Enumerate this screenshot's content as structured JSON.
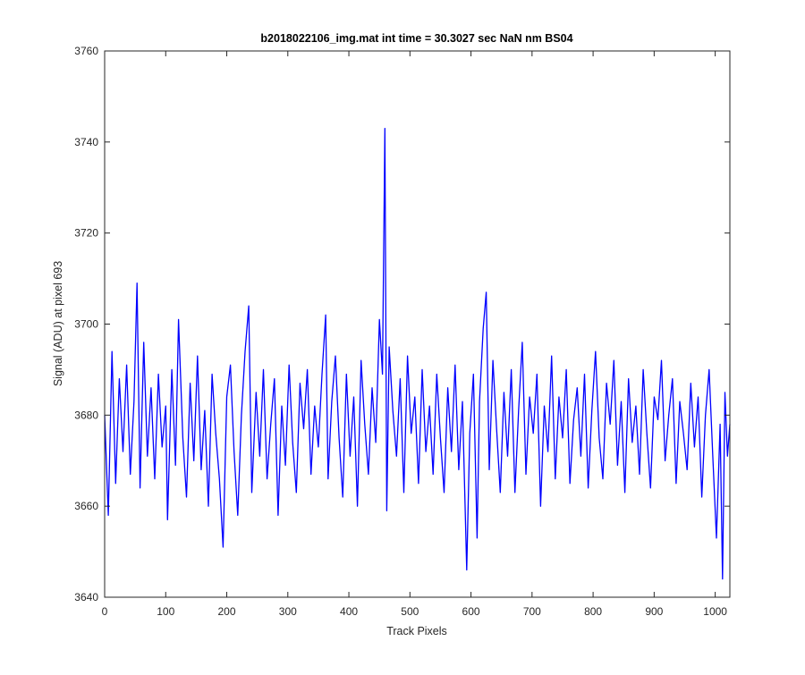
{
  "chart_data": {
    "type": "line",
    "title": "b2018022106_img.mat int time = 30.3027 sec  NaN nm BS04",
    "xlabel": "Track Pixels",
    "ylabel": "Signal (ADU) at pixel 693",
    "xlim": [
      0,
      1024
    ],
    "ylim": [
      3640,
      3760
    ],
    "xticks": [
      0,
      100,
      200,
      300,
      400,
      500,
      600,
      700,
      800,
      900,
      1000
    ],
    "yticks": [
      3640,
      3660,
      3680,
      3700,
      3720,
      3740,
      3760
    ],
    "grid": false,
    "line_color": "#0000ff",
    "series": [
      {
        "x": [
          0,
          6,
          12,
          18,
          24,
          30,
          36,
          42,
          48,
          53,
          58,
          64,
          70,
          76,
          82,
          88,
          94,
          100,
          103,
          110,
          116,
          121,
          128,
          134,
          140,
          146,
          152,
          158,
          164,
          170,
          176,
          182,
          188,
          194,
          200,
          206,
          212,
          218,
          224,
          230,
          236,
          241,
          248,
          254,
          260,
          266,
          272,
          278,
          284,
          290,
          296,
          302,
          308,
          314,
          320,
          326,
          332,
          338,
          344,
          350,
          356,
          362,
          366,
          372,
          378,
          384,
          390,
          396,
          402,
          408,
          414,
          420,
          426,
          432,
          438,
          444,
          450,
          455,
          459,
          462,
          466,
          472,
          478,
          484,
          490,
          496,
          502,
          508,
          514,
          520,
          526,
          532,
          538,
          544,
          550,
          556,
          562,
          568,
          574,
          580,
          586,
          593,
          598,
          604,
          610,
          614,
          620,
          625,
          630,
          636,
          642,
          648,
          654,
          660,
          666,
          672,
          678,
          684,
          690,
          696,
          702,
          708,
          714,
          720,
          726,
          732,
          738,
          744,
          750,
          756,
          762,
          768,
          774,
          780,
          786,
          792,
          798,
          804,
          810,
          816,
          822,
          828,
          834,
          840,
          846,
          852,
          858,
          864,
          870,
          876,
          882,
          888,
          894,
          900,
          906,
          912,
          918,
          924,
          930,
          936,
          942,
          948,
          954,
          960,
          966,
          972,
          978,
          984,
          990,
          996,
          1002,
          1008,
          1012,
          1016,
          1020,
          1024
        ],
        "y": [
          3680,
          3658,
          3694,
          3665,
          3688,
          3672,
          3691,
          3667,
          3683,
          3709,
          3664,
          3696,
          3671,
          3686,
          3666,
          3689,
          3673,
          3682,
          3657,
          3690,
          3669,
          3701,
          3675,
          3662,
          3687,
          3670,
          3693,
          3668,
          3681,
          3660,
          3689,
          3676,
          3666,
          3651,
          3684,
          3691,
          3672,
          3658,
          3680,
          3694,
          3704,
          3663,
          3685,
          3671,
          3690,
          3666,
          3678,
          3688,
          3658,
          3682,
          3669,
          3691,
          3674,
          3663,
          3687,
          3677,
          3690,
          3667,
          3682,
          3673,
          3689,
          3702,
          3666,
          3683,
          3693,
          3675,
          3662,
          3689,
          3671,
          3684,
          3660,
          3692,
          3678,
          3667,
          3686,
          3674,
          3701,
          3689,
          3743,
          3659,
          3695,
          3681,
          3671,
          3688,
          3663,
          3693,
          3676,
          3684,
          3665,
          3690,
          3672,
          3682,
          3667,
          3689,
          3675,
          3663,
          3686,
          3672,
          3691,
          3668,
          3683,
          3646,
          3676,
          3689,
          3653,
          3683,
          3699,
          3707,
          3668,
          3692,
          3677,
          3663,
          3685,
          3671,
          3690,
          3663,
          3681,
          3696,
          3667,
          3684,
          3676,
          3689,
          3660,
          3682,
          3672,
          3693,
          3666,
          3684,
          3675,
          3690,
          3665,
          3679,
          3686,
          3671,
          3689,
          3664,
          3681,
          3694,
          3675,
          3666,
          3687,
          3678,
          3692,
          3669,
          3683,
          3663,
          3688,
          3674,
          3682,
          3667,
          3690,
          3676,
          3664,
          3684,
          3679,
          3692,
          3670,
          3680,
          3688,
          3665,
          3683,
          3676,
          3668,
          3687,
          3673,
          3684,
          3662,
          3680,
          3690,
          3671,
          3653,
          3678,
          3644,
          3685,
          3671,
          3678
        ]
      }
    ]
  }
}
